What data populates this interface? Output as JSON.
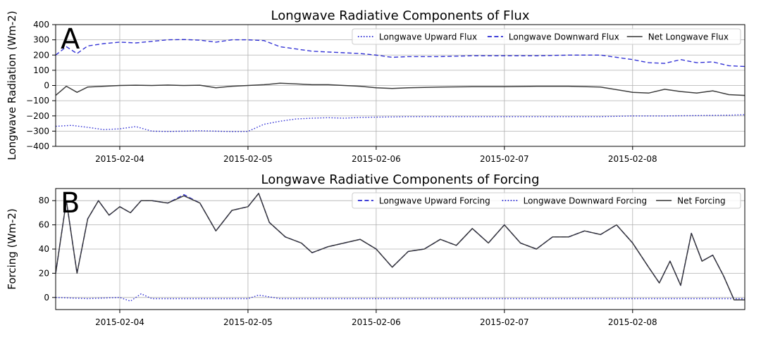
{
  "chart_data": [
    {
      "type": "line",
      "panel_letter": "A",
      "title": "Longwave Radiative Components of Flux",
      "xlabel": "",
      "ylabel": "Longwave Radiation (Wm-2)",
      "xlim": [
        "2015-02-03 12:00",
        "2015-02-08 21:00"
      ],
      "ylim": [
        -400,
        400
      ],
      "yticks": [
        400,
        300,
        200,
        100,
        0,
        -100,
        -200,
        -300,
        -400
      ],
      "ytick_labels": [
        "400",
        "300",
        "200",
        "100",
        "0",
        "−100",
        "−200",
        "−300",
        "−400"
      ],
      "xticks": [
        "2015-02-04",
        "2015-02-05",
        "2015-02-06",
        "2015-02-07",
        "2015-02-08"
      ],
      "grid": true,
      "legend": "top-right",
      "series": [
        {
          "name": "Longwave Upward Flux",
          "color": "#0000cc",
          "style": "dotted",
          "x": [
            "2015-02-03 12:00",
            "2015-02-03 15:00",
            "2015-02-03 18:00",
            "2015-02-03 21:00",
            "2015-02-04 00:00",
            "2015-02-04 03:00",
            "2015-02-04 06:00",
            "2015-02-04 09:00",
            "2015-02-04 12:00",
            "2015-02-04 15:00",
            "2015-02-04 18:00",
            "2015-02-04 21:00",
            "2015-02-05 00:00",
            "2015-02-05 03:00",
            "2015-02-05 06:00",
            "2015-02-05 09:00",
            "2015-02-05 12:00",
            "2015-02-05 15:00",
            "2015-02-05 18:00",
            "2015-02-05 21:00",
            "2015-02-06 00:00",
            "2015-02-06 06:00",
            "2015-02-06 12:00",
            "2015-02-06 18:00",
            "2015-02-07 00:00",
            "2015-02-07 06:00",
            "2015-02-07 12:00",
            "2015-02-07 18:00",
            "2015-02-08 00:00",
            "2015-02-08 06:00",
            "2015-02-08 12:00",
            "2015-02-08 18:00",
            "2015-02-08 21:00"
          ],
          "y": [
            -268,
            -262,
            -275,
            -290,
            -285,
            -270,
            -300,
            -302,
            -300,
            -298,
            -300,
            -303,
            -302,
            -255,
            -235,
            -220,
            -215,
            -212,
            -215,
            -210,
            -208,
            -205,
            -205,
            -205,
            -205,
            -205,
            -205,
            -205,
            -200,
            -200,
            -198,
            -195,
            -192
          ]
        },
        {
          "name": "Longwave Downward Flux",
          "color": "#0000cc",
          "style": "dashed",
          "x": [
            "2015-02-03 12:00",
            "2015-02-03 14:00",
            "2015-02-03 16:00",
            "2015-02-03 18:00",
            "2015-02-03 21:00",
            "2015-02-04 00:00",
            "2015-02-04 03:00",
            "2015-02-04 06:00",
            "2015-02-04 09:00",
            "2015-02-04 12:00",
            "2015-02-04 15:00",
            "2015-02-04 18:00",
            "2015-02-04 21:00",
            "2015-02-05 00:00",
            "2015-02-05 03:00",
            "2015-02-05 06:00",
            "2015-02-05 09:00",
            "2015-02-05 12:00",
            "2015-02-05 15:00",
            "2015-02-05 18:00",
            "2015-02-05 21:00",
            "2015-02-06 00:00",
            "2015-02-06 03:00",
            "2015-02-06 06:00",
            "2015-02-06 12:00",
            "2015-02-06 18:00",
            "2015-02-07 00:00",
            "2015-02-07 06:00",
            "2015-02-07 12:00",
            "2015-02-07 18:00",
            "2015-02-08 00:00",
            "2015-02-08 03:00",
            "2015-02-08 06:00",
            "2015-02-08 09:00",
            "2015-02-08 12:00",
            "2015-02-08 15:00",
            "2015-02-08 18:00",
            "2015-02-08 21:00"
          ],
          "y": [
            200,
            255,
            210,
            260,
            275,
            285,
            280,
            290,
            300,
            302,
            298,
            285,
            300,
            300,
            295,
            255,
            240,
            225,
            220,
            215,
            210,
            200,
            185,
            190,
            190,
            195,
            195,
            195,
            200,
            200,
            170,
            150,
            145,
            170,
            150,
            155,
            130,
            125
          ]
        },
        {
          "name": "Net Longwave Flux",
          "color": "#333333",
          "style": "solid",
          "x": [
            "2015-02-03 12:00",
            "2015-02-03 14:00",
            "2015-02-03 16:00",
            "2015-02-03 18:00",
            "2015-02-03 21:00",
            "2015-02-04 00:00",
            "2015-02-04 03:00",
            "2015-02-04 06:00",
            "2015-02-04 09:00",
            "2015-02-04 12:00",
            "2015-02-04 15:00",
            "2015-02-04 18:00",
            "2015-02-04 21:00",
            "2015-02-05 00:00",
            "2015-02-05 03:00",
            "2015-02-05 06:00",
            "2015-02-05 09:00",
            "2015-02-05 12:00",
            "2015-02-05 15:00",
            "2015-02-05 18:00",
            "2015-02-05 21:00",
            "2015-02-06 00:00",
            "2015-02-06 03:00",
            "2015-02-06 06:00",
            "2015-02-06 12:00",
            "2015-02-06 18:00",
            "2015-02-07 00:00",
            "2015-02-07 06:00",
            "2015-02-07 12:00",
            "2015-02-07 18:00",
            "2015-02-08 00:00",
            "2015-02-08 03:00",
            "2015-02-08 06:00",
            "2015-02-08 09:00",
            "2015-02-08 12:00",
            "2015-02-08 15:00",
            "2015-02-08 18:00",
            "2015-02-08 21:00"
          ],
          "y": [
            -65,
            -5,
            -45,
            -10,
            -5,
            0,
            2,
            0,
            3,
            0,
            2,
            -15,
            -5,
            0,
            5,
            15,
            10,
            5,
            5,
            0,
            -5,
            -15,
            -20,
            -15,
            -10,
            -8,
            -8,
            -5,
            -5,
            -10,
            -45,
            -50,
            -25,
            -40,
            -50,
            -35,
            -60,
            -65
          ]
        }
      ]
    },
    {
      "type": "line",
      "panel_letter": "B",
      "title": "Longwave Radiative Components of Forcing",
      "xlabel": "",
      "ylabel": "Forcing (Wm-2)",
      "xlim": [
        "2015-02-03 12:00",
        "2015-02-08 21:00"
      ],
      "ylim": [
        -10,
        90
      ],
      "yticks": [
        80,
        60,
        40,
        20,
        0
      ],
      "ytick_labels": [
        "80",
        "60",
        "40",
        "20",
        "0"
      ],
      "xticks": [
        "2015-02-04",
        "2015-02-05",
        "2015-02-06",
        "2015-02-07",
        "2015-02-08"
      ],
      "grid": true,
      "legend": "top-right",
      "series": [
        {
          "name": "Longwave Upward Forcing",
          "color": "#0000cc",
          "style": "dashed",
          "x": [
            "2015-02-03 12:00",
            "2015-02-03 14:00",
            "2015-02-03 16:00",
            "2015-02-03 18:00",
            "2015-02-03 20:00",
            "2015-02-03 22:00",
            "2015-02-04 00:00",
            "2015-02-04 02:00",
            "2015-02-04 04:00",
            "2015-02-04 06:00",
            "2015-02-04 09:00",
            "2015-02-04 12:00",
            "2015-02-04 15:00",
            "2015-02-04 18:00",
            "2015-02-04 21:00",
            "2015-02-05 00:00",
            "2015-02-05 02:00",
            "2015-02-05 04:00",
            "2015-02-05 07:00",
            "2015-02-05 10:00",
            "2015-02-05 12:00",
            "2015-02-05 15:00",
            "2015-02-05 18:00",
            "2015-02-05 21:00",
            "2015-02-06 00:00",
            "2015-02-06 03:00",
            "2015-02-06 06:00",
            "2015-02-06 09:00",
            "2015-02-06 12:00",
            "2015-02-06 15:00",
            "2015-02-06 18:00",
            "2015-02-06 21:00",
            "2015-02-07 00:00",
            "2015-02-07 03:00",
            "2015-02-07 06:00",
            "2015-02-07 09:00",
            "2015-02-07 12:00",
            "2015-02-07 15:00",
            "2015-02-07 18:00",
            "2015-02-07 21:00",
            "2015-02-08 00:00",
            "2015-02-08 03:00",
            "2015-02-08 05:00",
            "2015-02-08 07:00",
            "2015-02-08 09:00",
            "2015-02-08 11:00",
            "2015-02-08 13:00",
            "2015-02-08 15:00",
            "2015-02-08 17:00",
            "2015-02-08 19:00",
            "2015-02-08 21:00"
          ],
          "y": [
            20,
            80,
            20,
            65,
            80,
            68,
            75,
            70,
            80,
            80,
            78,
            85,
            78,
            55,
            72,
            75,
            86,
            62,
            50,
            45,
            37,
            42,
            45,
            48,
            40,
            25,
            38,
            40,
            48,
            43,
            57,
            45,
            60,
            45,
            40,
            50,
            50,
            55,
            52,
            60,
            45,
            25,
            12,
            30,
            10,
            53,
            30,
            35,
            18,
            -2,
            -2
          ]
        },
        {
          "name": "Longwave Downward Forcing",
          "color": "#0000cc",
          "style": "dotted",
          "x": [
            "2015-02-03 12:00",
            "2015-02-03 18:00",
            "2015-02-04 00:00",
            "2015-02-04 02:00",
            "2015-02-04 04:00",
            "2015-02-04 06:00",
            "2015-02-04 12:00",
            "2015-02-05 00:00",
            "2015-02-05 02:00",
            "2015-02-05 06:00",
            "2015-02-06 00:00",
            "2015-02-07 00:00",
            "2015-02-08 00:00",
            "2015-02-08 12:00",
            "2015-02-08 21:00"
          ],
          "y": [
            0,
            -1,
            0,
            -3,
            3,
            -1,
            -1,
            -1,
            2,
            -1,
            -1,
            -1,
            -1,
            -1,
            -1
          ]
        },
        {
          "name": "Net Forcing",
          "color": "#333333",
          "style": "solid",
          "x": [
            "2015-02-03 12:00",
            "2015-02-03 14:00",
            "2015-02-03 16:00",
            "2015-02-03 18:00",
            "2015-02-03 20:00",
            "2015-02-03 22:00",
            "2015-02-04 00:00",
            "2015-02-04 02:00",
            "2015-02-04 04:00",
            "2015-02-04 06:00",
            "2015-02-04 09:00",
            "2015-02-04 12:00",
            "2015-02-04 15:00",
            "2015-02-04 18:00",
            "2015-02-04 21:00",
            "2015-02-05 00:00",
            "2015-02-05 02:00",
            "2015-02-05 04:00",
            "2015-02-05 07:00",
            "2015-02-05 10:00",
            "2015-02-05 12:00",
            "2015-02-05 15:00",
            "2015-02-05 18:00",
            "2015-02-05 21:00",
            "2015-02-06 00:00",
            "2015-02-06 03:00",
            "2015-02-06 06:00",
            "2015-02-06 09:00",
            "2015-02-06 12:00",
            "2015-02-06 15:00",
            "2015-02-06 18:00",
            "2015-02-06 21:00",
            "2015-02-07 00:00",
            "2015-02-07 03:00",
            "2015-02-07 06:00",
            "2015-02-07 09:00",
            "2015-02-07 12:00",
            "2015-02-07 15:00",
            "2015-02-07 18:00",
            "2015-02-07 21:00",
            "2015-02-08 00:00",
            "2015-02-08 03:00",
            "2015-02-08 05:00",
            "2015-02-08 07:00",
            "2015-02-08 09:00",
            "2015-02-08 11:00",
            "2015-02-08 13:00",
            "2015-02-08 15:00",
            "2015-02-08 17:00",
            "2015-02-08 19:00",
            "2015-02-08 21:00"
          ],
          "y": [
            20,
            80,
            20,
            65,
            80,
            68,
            75,
            70,
            80,
            80,
            78,
            84,
            78,
            55,
            72,
            75,
            86,
            62,
            50,
            45,
            37,
            42,
            45,
            48,
            40,
            25,
            38,
            40,
            48,
            43,
            57,
            45,
            60,
            45,
            40,
            50,
            50,
            55,
            52,
            60,
            45,
            25,
            12,
            30,
            10,
            53,
            30,
            35,
            18,
            -2,
            -2
          ]
        }
      ]
    }
  ]
}
